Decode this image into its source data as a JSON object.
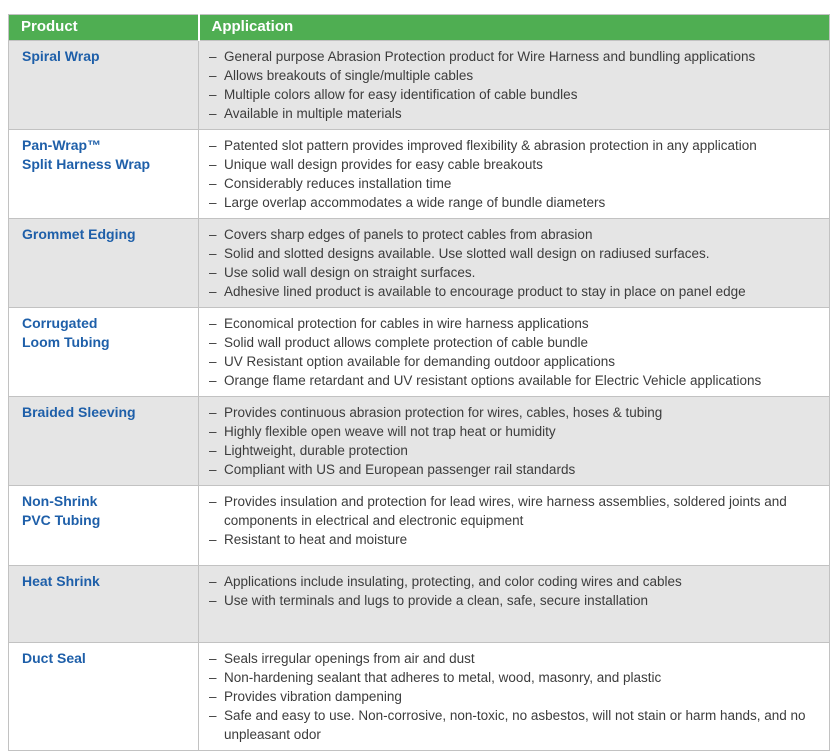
{
  "colors": {
    "header_bg": "#4fae52",
    "header_text": "#ffffff",
    "product_text": "#1e5fa9",
    "row_alt_bg": "#e5e5e5",
    "row_bg": "#ffffff",
    "border": "#c2c2c2",
    "body_text": "#3c3c3c"
  },
  "table": {
    "headers": [
      "Product",
      "Application"
    ],
    "bullet_prefix": "–",
    "rows": [
      {
        "product_lines": [
          "Spiral Wrap"
        ],
        "applications": [
          "General purpose Abrasion Protection product for Wire Harness and bundling applications",
          "Allows breakouts of single/multiple cables",
          "Multiple colors allow for easy identification of cable bundles",
          "Available in multiple materials"
        ]
      },
      {
        "product_lines": [
          "Pan-Wrap™",
          "Split Harness Wrap"
        ],
        "applications": [
          "Patented slot pattern provides improved flexibility & abrasion protection in any application",
          "Unique wall design provides for easy cable breakouts",
          "Considerably reduces installation time",
          "Large overlap accommodates a wide range of bundle diameters"
        ]
      },
      {
        "product_lines": [
          "Grommet Edging"
        ],
        "applications": [
          "Covers sharp edges of panels to protect cables from abrasion",
          "Solid and slotted designs available. Use slotted wall design on radiused surfaces.",
          "Use solid wall design on straight surfaces.",
          "Adhesive lined product is available to encourage product to stay in place on panel edge"
        ]
      },
      {
        "product_lines": [
          "Corrugated",
          "Loom Tubing"
        ],
        "applications": [
          "Economical protection for cables in wire harness applications",
          "Solid wall product allows complete protection of cable bundle",
          "UV Resistant option available for demanding outdoor applications",
          "Orange flame retardant and UV resistant options available for Electric Vehicle applications"
        ]
      },
      {
        "product_lines": [
          "Braided Sleeving"
        ],
        "applications": [
          "Provides continuous abrasion protection for wires, cables, hoses & tubing",
          "Highly flexible open weave will not trap heat or humidity",
          "Lightweight, durable protection",
          "Compliant with US and European passenger rail standards"
        ]
      },
      {
        "product_lines": [
          "Non-Shrink",
          "PVC Tubing"
        ],
        "applications": [
          "Provides insulation and protection for lead wires, wire harness assemblies, soldered joints and components in electrical and electronic equipment",
          "Resistant to heat and moisture"
        ]
      },
      {
        "product_lines": [
          "Heat Shrink"
        ],
        "applications": [
          "Applications include insulating, protecting, and color coding wires and cables",
          "Use with terminals and lugs to provide a clean, safe, secure installation"
        ]
      },
      {
        "product_lines": [
          "Duct Seal"
        ],
        "applications": [
          "Seals irregular openings from air and dust",
          "Non-hardening sealant that adheres to metal, wood, masonry, and plastic",
          "Provides vibration dampening",
          "Safe and easy to use. Non-corrosive, non-toxic, no asbestos, will not stain or harm hands, and no unpleasant odor"
        ]
      }
    ]
  }
}
